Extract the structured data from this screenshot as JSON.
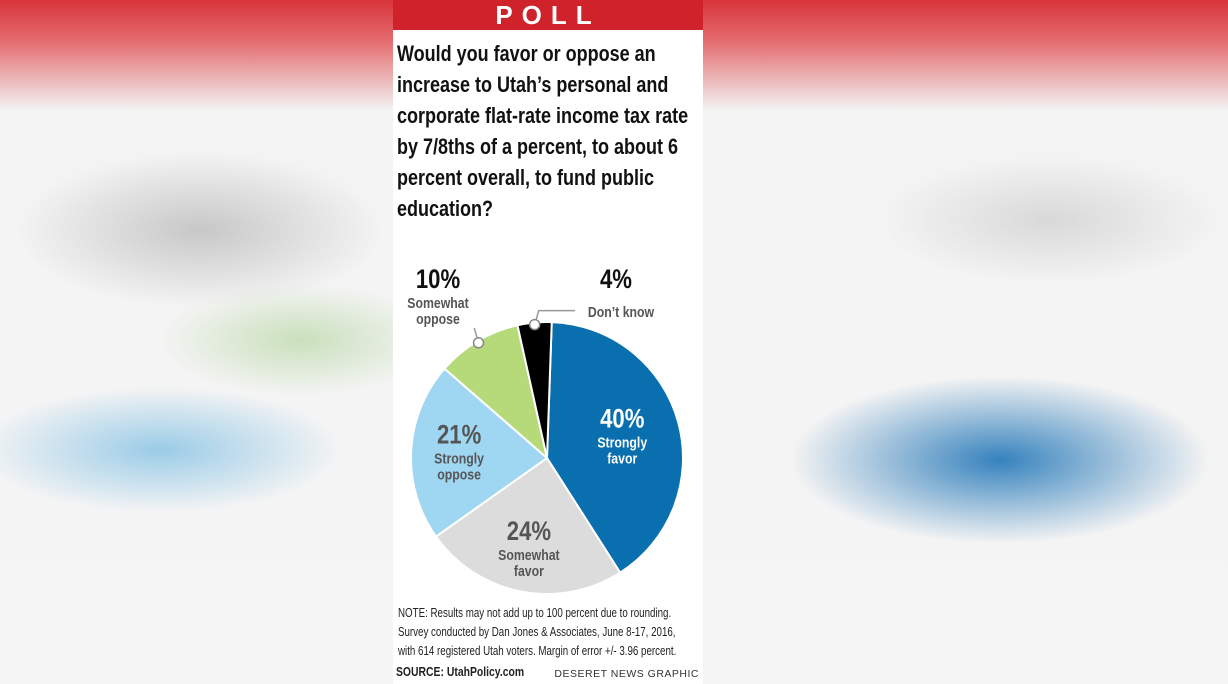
{
  "header": {
    "banner": "POLL"
  },
  "question": "Would you favor or oppose an increase to Utah’s personal and corporate flat-rate income tax rate by 7/8ths of a percent, to about 6 percent overall, to fund public education?",
  "colors": {
    "strongly_favor": "#0a6fae",
    "somewhat_favor": "#dcdcdc",
    "strongly_oppose": "#9fd6f2",
    "somewhat_oppose": "#b6d97a",
    "dont_know": "#000000",
    "banner": "#d0222a"
  },
  "chart_data": {
    "type": "pie",
    "slices": [
      {
        "pct": "40%",
        "label": [
          "Strongly",
          "favor"
        ],
        "value": 40
      },
      {
        "pct": "24%",
        "label": [
          "Somewhat",
          "favor"
        ],
        "value": 24
      },
      {
        "pct": "21%",
        "label": [
          "Strongly",
          "oppose"
        ],
        "value": 21
      },
      {
        "pct": "10%",
        "label": [
          "Somewhat",
          "oppose"
        ],
        "value": 10
      },
      {
        "pct": "4%",
        "label": [
          "Don’t know"
        ],
        "value": 4
      }
    ]
  },
  "note": [
    "NOTE: Results may not add up to 100 percent due to rounding.",
    "Survey conducted by Dan Jones & Associates, June 8-17, 2016,",
    "with 614 registered Utah voters. Margin of error +/- 3.96 percent."
  ],
  "source": "SOURCE: UtahPolicy.com",
  "credit": "DESERET NEWS GRAPHIC"
}
